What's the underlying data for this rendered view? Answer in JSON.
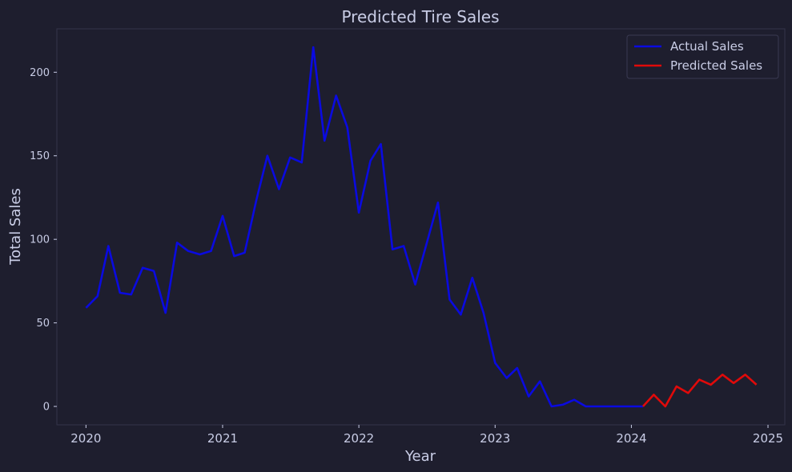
{
  "chart_data": {
    "type": "line",
    "title": "Predicted Tire Sales",
    "xlabel": "Year",
    "ylabel": "Total Sales",
    "xlim": [
      "2019-10-15",
      "2025-02-15"
    ],
    "ylim": [
      -11,
      226
    ],
    "x_ticks": [
      "2020",
      "2021",
      "2022",
      "2023",
      "2024",
      "2025"
    ],
    "y_ticks": [
      0,
      50,
      100,
      150,
      200
    ],
    "grid": false,
    "legend_position": "top-right",
    "colors": {
      "background": "#1e1e2e",
      "text": "#c9cde6",
      "frame": "#34344a"
    },
    "series": [
      {
        "name": "Actual Sales",
        "color": "#0a0ae0",
        "points": [
          [
            "2020-01-01",
            59
          ],
          [
            "2020-02-01",
            66
          ],
          [
            "2020-03-01",
            96
          ],
          [
            "2020-04-01",
            68
          ],
          [
            "2020-05-01",
            67
          ],
          [
            "2020-06-01",
            83
          ],
          [
            "2020-07-01",
            81
          ],
          [
            "2020-08-01",
            56
          ],
          [
            "2020-09-01",
            98
          ],
          [
            "2020-10-01",
            93
          ],
          [
            "2020-11-01",
            91
          ],
          [
            "2020-12-01",
            93
          ],
          [
            "2021-01-01",
            114
          ],
          [
            "2021-02-01",
            90
          ],
          [
            "2021-03-01",
            92
          ],
          [
            "2021-04-01",
            123
          ],
          [
            "2021-05-01",
            150
          ],
          [
            "2021-06-01",
            130
          ],
          [
            "2021-07-01",
            149
          ],
          [
            "2021-08-01",
            146
          ],
          [
            "2021-09-01",
            215
          ],
          [
            "2021-10-01",
            159
          ],
          [
            "2021-11-01",
            186
          ],
          [
            "2021-12-01",
            167
          ],
          [
            "2022-01-01",
            116
          ],
          [
            "2022-02-01",
            147
          ],
          [
            "2022-03-01",
            157
          ],
          [
            "2022-04-01",
            94
          ],
          [
            "2022-05-01",
            96
          ],
          [
            "2022-06-01",
            73
          ],
          [
            "2022-07-01",
            97
          ],
          [
            "2022-08-01",
            122
          ],
          [
            "2022-09-01",
            64
          ],
          [
            "2022-10-01",
            55
          ],
          [
            "2022-11-01",
            77
          ],
          [
            "2022-12-01",
            56
          ],
          [
            "2023-01-01",
            26
          ],
          [
            "2023-02-01",
            17
          ],
          [
            "2023-03-01",
            23
          ],
          [
            "2023-04-01",
            6
          ],
          [
            "2023-05-01",
            15
          ],
          [
            "2023-06-01",
            0
          ],
          [
            "2023-07-01",
            1
          ],
          [
            "2023-08-01",
            4
          ],
          [
            "2023-09-01",
            0
          ],
          [
            "2023-10-01",
            0
          ],
          [
            "2023-11-01",
            0
          ],
          [
            "2023-12-01",
            0
          ],
          [
            "2024-01-01",
            0
          ],
          [
            "2024-02-01",
            0
          ]
        ]
      },
      {
        "name": "Predicted Sales",
        "color": "#e00a0a",
        "points": [
          [
            "2024-02-01",
            0
          ],
          [
            "2024-03-01",
            7
          ],
          [
            "2024-04-01",
            0
          ],
          [
            "2024-05-01",
            12
          ],
          [
            "2024-06-01",
            8
          ],
          [
            "2024-07-01",
            16
          ],
          [
            "2024-08-01",
            13
          ],
          [
            "2024-09-01",
            19
          ],
          [
            "2024-10-01",
            14
          ],
          [
            "2024-11-01",
            19
          ],
          [
            "2024-12-01",
            13
          ]
        ]
      }
    ]
  }
}
